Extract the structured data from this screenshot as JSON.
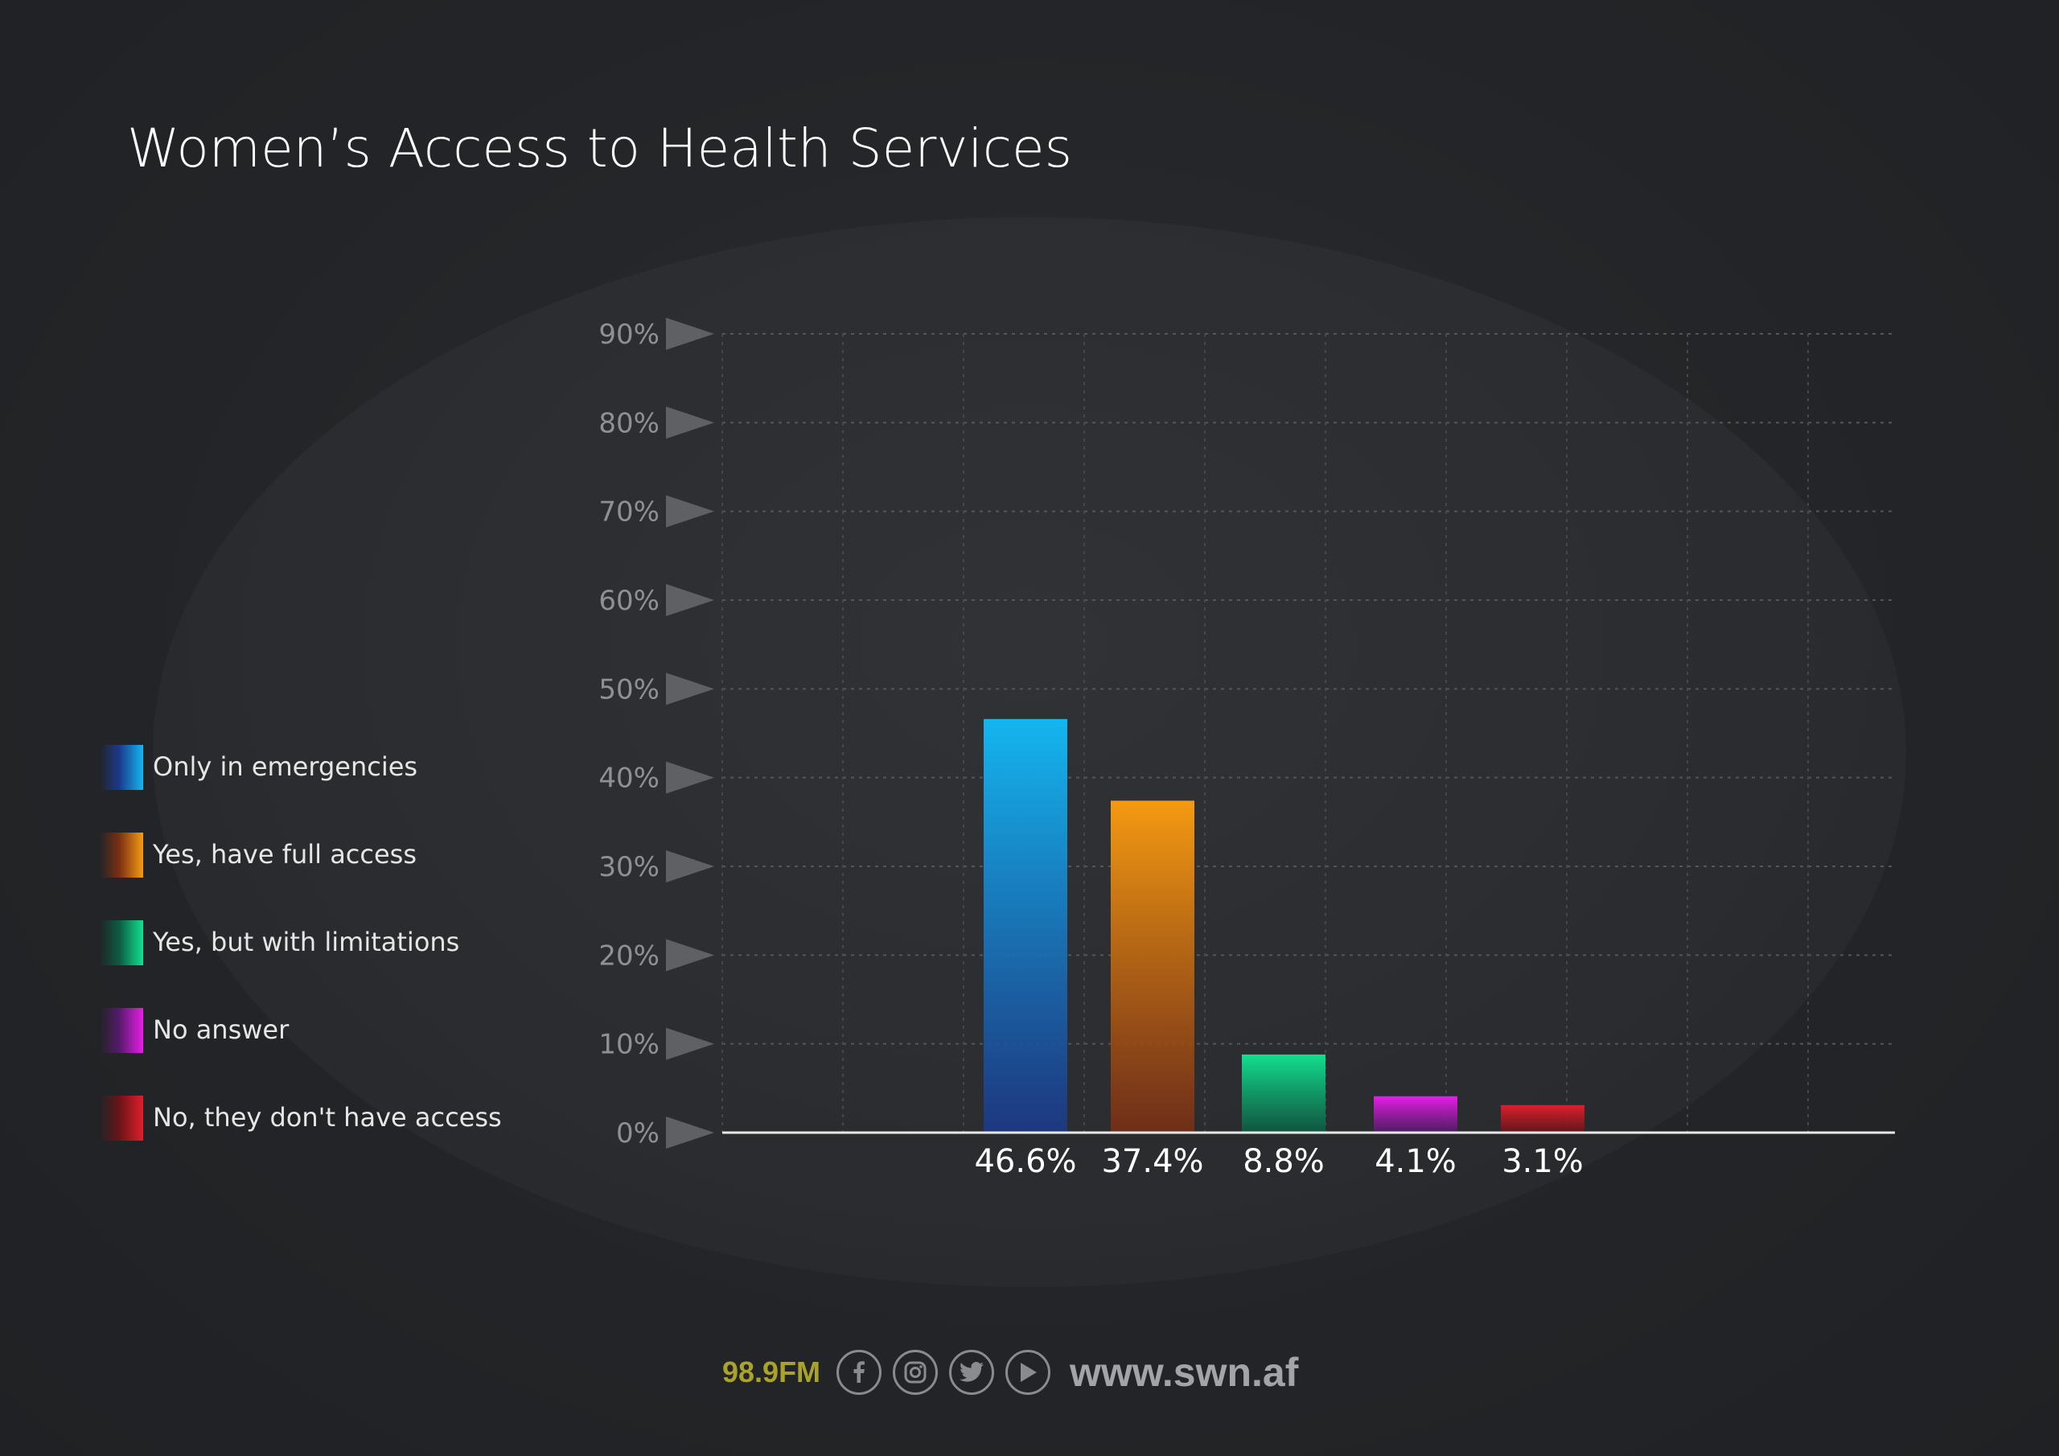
{
  "title": "Women’s Access to Health Services",
  "legend": {
    "items": [
      {
        "label": "Only in emergencies",
        "color_top": "#14b6f0",
        "color_bottom": "#1b3a8c"
      },
      {
        "label": "Yes, have full access",
        "color_top": "#f59a12",
        "color_bottom": "#7a2f14"
      },
      {
        "label": "Yes, but with limitations",
        "color_top": "#12e08f",
        "color_bottom": "#0c5c42"
      },
      {
        "label": "No answer",
        "color_top": "#e81de6",
        "color_bottom": "#551a6b"
      },
      {
        "label": "No, they don't have access",
        "color_top": "#e01e2c",
        "color_bottom": "#6a1418"
      }
    ]
  },
  "chart_data": {
    "type": "bar",
    "title": "Women’s Access to Health Services",
    "categories": [
      "Only in emergencies",
      "Yes, have full access",
      "Yes, but with limitations",
      "No answer",
      "No, they don't have access"
    ],
    "values": [
      46.6,
      37.4,
      8.8,
      4.1,
      3.1
    ],
    "value_labels": [
      "46.6%",
      "37.4%",
      "8.8%",
      "4.1%",
      "3.1%"
    ],
    "ylim": [
      0,
      90
    ],
    "yticks": [
      0,
      10,
      20,
      30,
      40,
      50,
      60,
      70,
      80,
      90
    ],
    "ytick_labels": [
      "0%",
      "10%",
      "20%",
      "30%",
      "40%",
      "50%",
      "60%",
      "70%",
      "80%",
      "90%"
    ],
    "xlabel": "",
    "ylabel": "",
    "grid": true,
    "legend_position": "left"
  },
  "footer": {
    "frequency": "98.9FM",
    "website": "www.swn.af",
    "icons": [
      "facebook-icon",
      "instagram-icon",
      "twitter-icon",
      "youtube-play-icon"
    ]
  }
}
